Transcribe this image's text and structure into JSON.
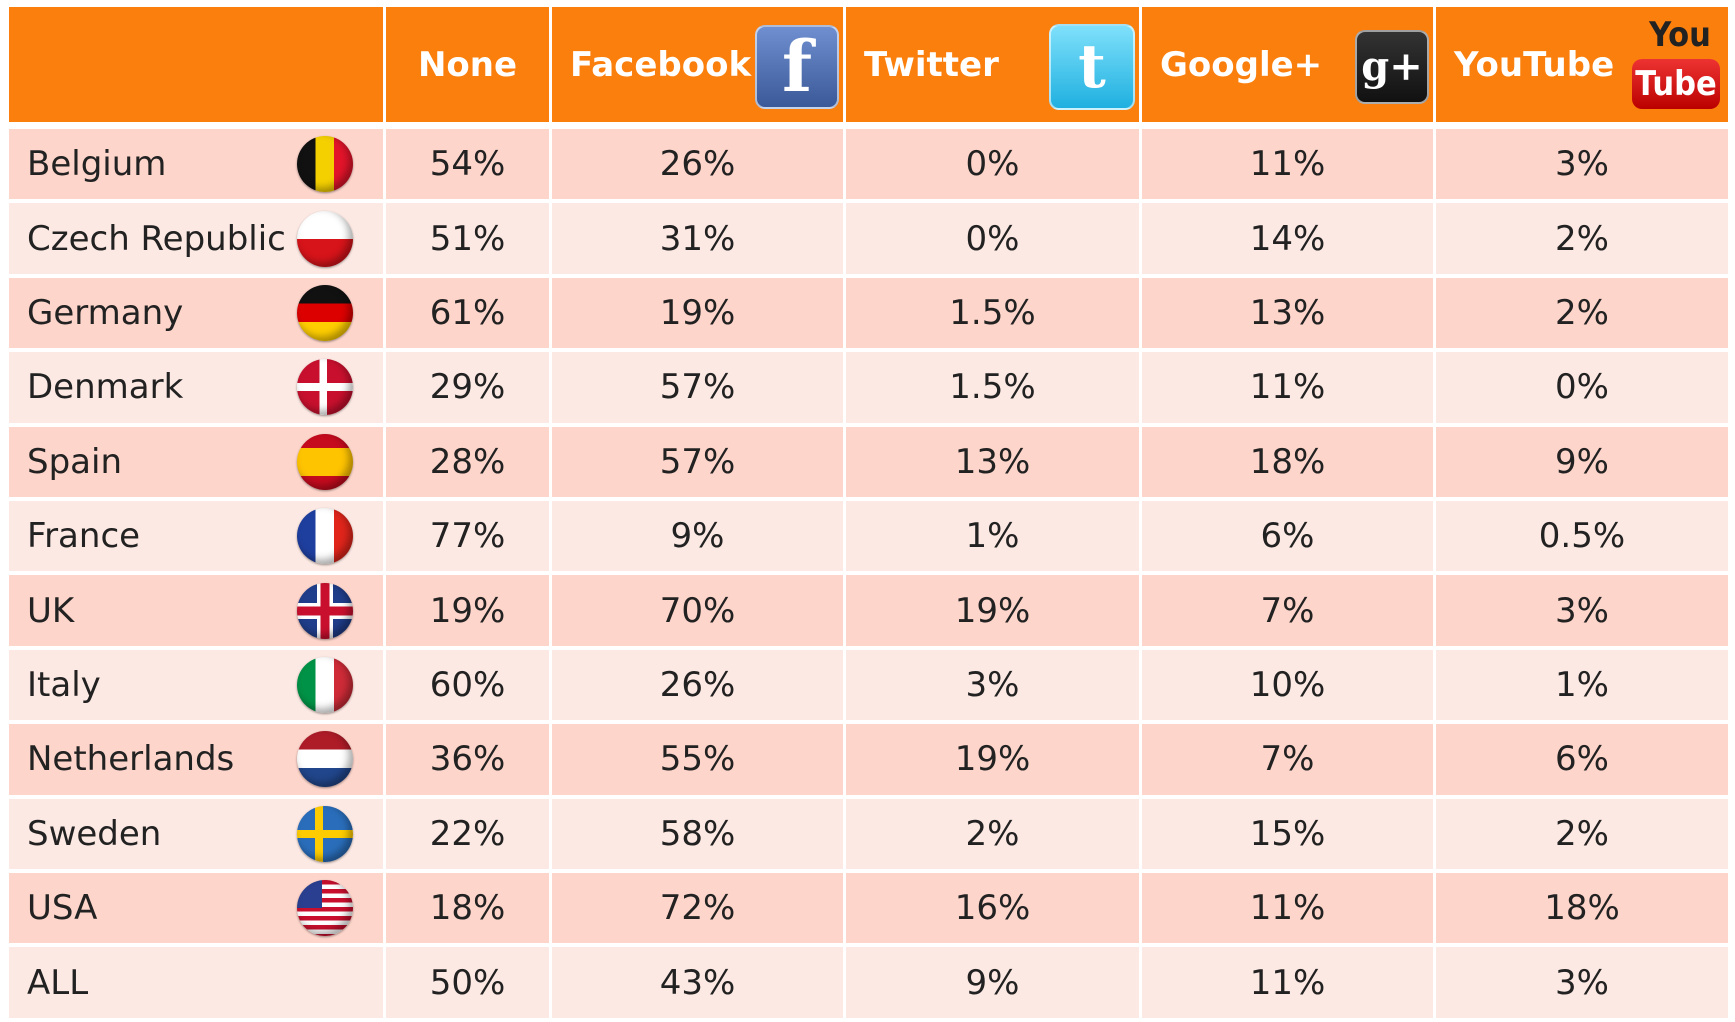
{
  "table": {
    "columns": [
      {
        "name": "None"
      },
      {
        "name": "Facebook",
        "logo": [
          "f"
        ]
      },
      {
        "name": "Twitter",
        "logo": [
          "t"
        ]
      },
      {
        "name": "Google+",
        "logo": [
          "g+"
        ]
      },
      {
        "name": "YouTube",
        "logo": [
          "You",
          "Tube"
        ]
      }
    ],
    "rows": [
      {
        "country": "Belgium",
        "values": [
          "54%",
          "26%",
          "0%",
          "11%",
          "3%"
        ]
      },
      {
        "country": "Czech Republic",
        "values": [
          "51%",
          "31%",
          "0%",
          "14%",
          "2%"
        ]
      },
      {
        "country": "Germany",
        "values": [
          "61%",
          "19%",
          "1.5%",
          "13%",
          "2%"
        ]
      },
      {
        "country": "Denmark",
        "values": [
          "29%",
          "57%",
          "1.5%",
          "11%",
          "0%"
        ]
      },
      {
        "country": "Spain",
        "values": [
          "28%",
          "57%",
          "13%",
          "18%",
          "9%"
        ]
      },
      {
        "country": "France",
        "values": [
          "77%",
          "9%",
          "1%",
          "6%",
          "0.5%"
        ]
      },
      {
        "country": "UK",
        "values": [
          "19%",
          "70%",
          "19%",
          "7%",
          "3%"
        ]
      },
      {
        "country": "Italy",
        "values": [
          "60%",
          "26%",
          "3%",
          "10%",
          "1%"
        ]
      },
      {
        "country": "Netherlands",
        "values": [
          "36%",
          "55%",
          "19%",
          "7%",
          "6%"
        ]
      },
      {
        "country": "Sweden",
        "values": [
          "22%",
          "58%",
          "2%",
          "15%",
          "2%"
        ]
      },
      {
        "country": "USA",
        "values": [
          "18%",
          "72%",
          "16%",
          "11%",
          "18%"
        ]
      },
      {
        "country": "ALL",
        "values": [
          "50%",
          "43%",
          "9%",
          "11%",
          "3%"
        ]
      }
    ]
  }
}
